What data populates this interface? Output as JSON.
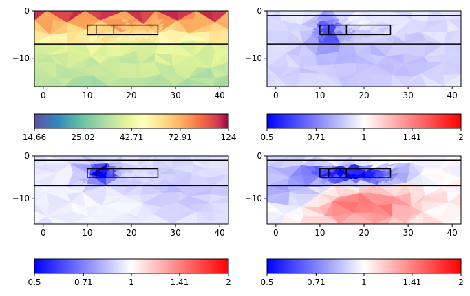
{
  "chart_data": [
    {
      "type": "heatmap",
      "xlim": [
        -2,
        42
      ],
      "ylim": [
        -16,
        0
      ],
      "xticks": [
        "0",
        "10",
        "20",
        "30",
        "40"
      ],
      "xtick_values": [
        0,
        10,
        20,
        30,
        40
      ],
      "yticks": [
        "0",
        "-10"
      ],
      "ytick_values": [
        0,
        -10
      ],
      "colormap": "Spectral_r",
      "colorbar": {
        "scale": "log",
        "range": [
          14.66,
          124
        ],
        "tick_labels": [
          "14.66",
          "25.02",
          "42.71",
          "72.91",
          "124"
        ],
        "tick_values": [
          14.66,
          25.02,
          42.71,
          72.91,
          124
        ]
      },
      "layer_boundaries": [
        -7
      ],
      "boxes": [
        {
          "x": [
            10,
            26
          ],
          "y": [
            -5,
            -3
          ],
          "dividers": [
            12,
            16
          ]
        }
      ]
    },
    {
      "type": "heatmap",
      "xlim": [
        -2,
        42
      ],
      "ylim": [
        -16,
        0
      ],
      "xticks": [
        "0",
        "10",
        "20",
        "30",
        "40"
      ],
      "xtick_values": [
        0,
        10,
        20,
        30,
        40
      ],
      "yticks": [
        "0",
        "-10"
      ],
      "ytick_values": [
        0,
        -10
      ],
      "colormap": "bwr",
      "colorbar": {
        "scale": "log",
        "range": [
          0.5,
          2
        ],
        "tick_labels": [
          "0.5",
          "0.71",
          "1",
          "1.41",
          "2"
        ],
        "tick_values": [
          0.5,
          0.71,
          1,
          1.41,
          2
        ]
      },
      "layer_boundaries": [
        -1,
        -7
      ],
      "boxes": [
        {
          "x": [
            10,
            26
          ],
          "y": [
            -5,
            -3
          ],
          "dividers": [
            12,
            16
          ]
        }
      ]
    },
    {
      "type": "heatmap",
      "xlim": [
        -2,
        42
      ],
      "ylim": [
        -16,
        0
      ],
      "xticks": [
        "0",
        "10",
        "20",
        "30",
        "40"
      ],
      "xtick_values": [
        0,
        10,
        20,
        30,
        40
      ],
      "yticks": [
        "0",
        "-10"
      ],
      "ytick_values": [
        0,
        -10
      ],
      "colormap": "bwr",
      "colorbar": {
        "scale": "log",
        "range": [
          0.5,
          2
        ],
        "tick_labels": [
          "0.5",
          "0.71",
          "1",
          "1.41",
          "2"
        ],
        "tick_values": [
          0.5,
          0.71,
          1,
          1.41,
          2
        ]
      },
      "layer_boundaries": [
        -1,
        -7
      ],
      "boxes": [
        {
          "x": [
            10,
            26
          ],
          "y": [
            -5,
            -3
          ],
          "dividers": [
            12,
            16
          ]
        }
      ]
    },
    {
      "type": "heatmap",
      "xlim": [
        -2,
        42
      ],
      "ylim": [
        -16,
        0
      ],
      "xticks": [
        "0",
        "10",
        "20",
        "30",
        "40"
      ],
      "xtick_values": [
        0,
        10,
        20,
        30,
        40
      ],
      "yticks": [
        "0",
        "-10"
      ],
      "ytick_values": [
        0,
        -10
      ],
      "colormap": "bwr",
      "colorbar": {
        "scale": "log",
        "range": [
          0.5,
          2
        ],
        "tick_labels": [
          "0.5",
          "0.71",
          "1",
          "1.41",
          "2"
        ],
        "tick_values": [
          0.5,
          0.71,
          1,
          1.41,
          2
        ]
      },
      "layer_boundaries": [
        -1,
        -7
      ],
      "boxes": [
        {
          "x": [
            10,
            26
          ],
          "y": [
            -5,
            -3
          ],
          "dividers": [
            12,
            16
          ]
        }
      ]
    }
  ]
}
